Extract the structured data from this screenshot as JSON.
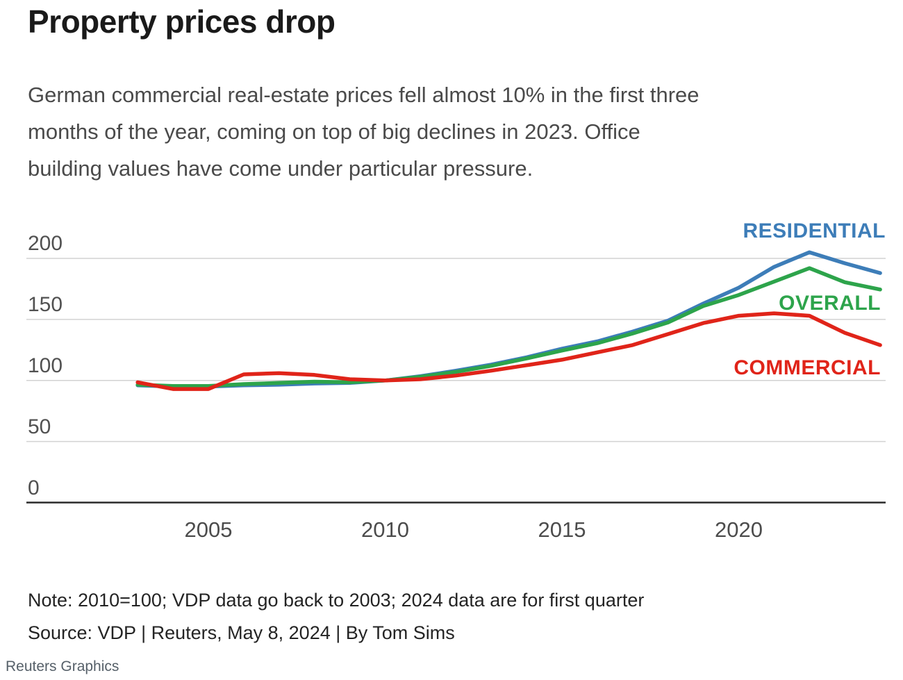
{
  "header": {
    "title": "Property prices drop",
    "subtitle_lines": [
      "German commercial real-estate prices fell almost 10% in the first three",
      "months of the year, coming on top of big declines in 2023. Office",
      "building values have come under particular pressure."
    ]
  },
  "chart_data": {
    "type": "line",
    "title": "Property prices drop",
    "x": [
      2003,
      2004,
      2005,
      2006,
      2007,
      2008,
      2009,
      2010,
      2011,
      2012,
      2013,
      2014,
      2015,
      2016,
      2017,
      2018,
      2019,
      2020,
      2021,
      2022,
      2023,
      2024
    ],
    "series": [
      {
        "name": "RESIDENTIAL",
        "color": "#3d7db8",
        "values": [
          96,
          95,
          95,
          96,
          96.5,
          97.5,
          98,
          100,
          103.5,
          108,
          113,
          119,
          126,
          132,
          140,
          149,
          163,
          176,
          193,
          205,
          196,
          188
        ]
      },
      {
        "name": "OVERALL",
        "color": "#2da44b",
        "values": [
          96.5,
          95.5,
          95.5,
          97,
          98,
          99,
          98.5,
          100,
          103,
          107,
          112,
          118,
          124.5,
          130.5,
          138.5,
          147.5,
          161,
          170,
          181,
          192,
          180.5,
          174.5
        ]
      },
      {
        "name": "COMMERCIAL",
        "color": "#e02419",
        "values": [
          98.5,
          93,
          93,
          105,
          106,
          104.5,
          101,
          100,
          101,
          104,
          108,
          112.5,
          117,
          123,
          129,
          138,
          147,
          153,
          155,
          153,
          139,
          129
        ]
      }
    ],
    "ylim": [
      0,
      200
    ],
    "yticks": [
      0,
      50,
      100,
      150,
      200
    ],
    "xticks": [
      2005,
      2010,
      2015,
      2020
    ],
    "xlabel": "",
    "ylabel": "",
    "grid": "horizontal light gridlines at yticks, dark solid baseline at 0",
    "legend_position": "inline colored labels at right of lines"
  },
  "footer": {
    "note": "Note: 2010=100; VDP data go back to 2003; 2024 data are for first quarter",
    "source": "Source: VDP | Reuters, May 8, 2024 | By Tom Sims",
    "credit": "Reuters Graphics"
  }
}
